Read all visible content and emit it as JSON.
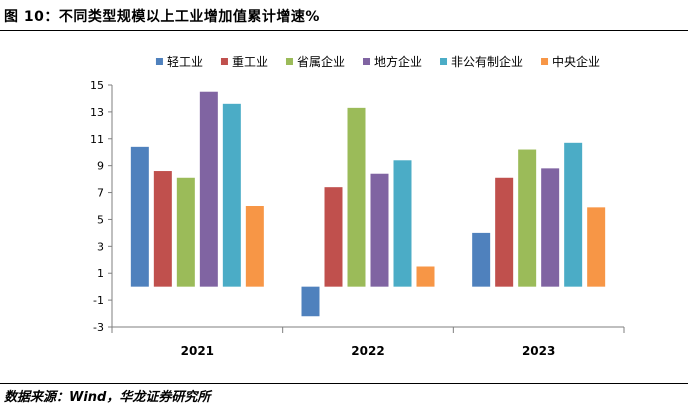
{
  "figure": {
    "title": "图 10：不同类型规模以上工业增加值累计增速%",
    "source": "数据来源：Wind，华龙证券研究所"
  },
  "chart_data": {
    "type": "bar",
    "title": "不同类型规模以上工业增加值累计增速%",
    "xlabel": "",
    "ylabel": "",
    "categories": [
      "2021",
      "2022",
      "2023"
    ],
    "ylim": [
      -3,
      15
    ],
    "yticks": [
      -3,
      -1,
      1,
      3,
      5,
      7,
      9,
      11,
      13,
      15
    ],
    "legend_position": "top",
    "grid": false,
    "series": [
      {
        "name": "轻工业",
        "color": "#4f81bd",
        "values": [
          10.4,
          -2.2,
          4.0
        ]
      },
      {
        "name": "重工业",
        "color": "#c0504d",
        "values": [
          8.6,
          7.4,
          8.1
        ]
      },
      {
        "name": "省属企业",
        "color": "#9bbb59",
        "values": [
          8.1,
          13.3,
          10.2
        ]
      },
      {
        "name": "地方企业",
        "color": "#8064a2",
        "values": [
          14.5,
          8.4,
          8.8
        ]
      },
      {
        "name": "非公有制企业",
        "color": "#4bacc6",
        "values": [
          13.6,
          9.4,
          10.7
        ]
      },
      {
        "name": "中央企业",
        "color": "#f79646",
        "values": [
          6.0,
          1.5,
          5.9
        ]
      }
    ]
  }
}
